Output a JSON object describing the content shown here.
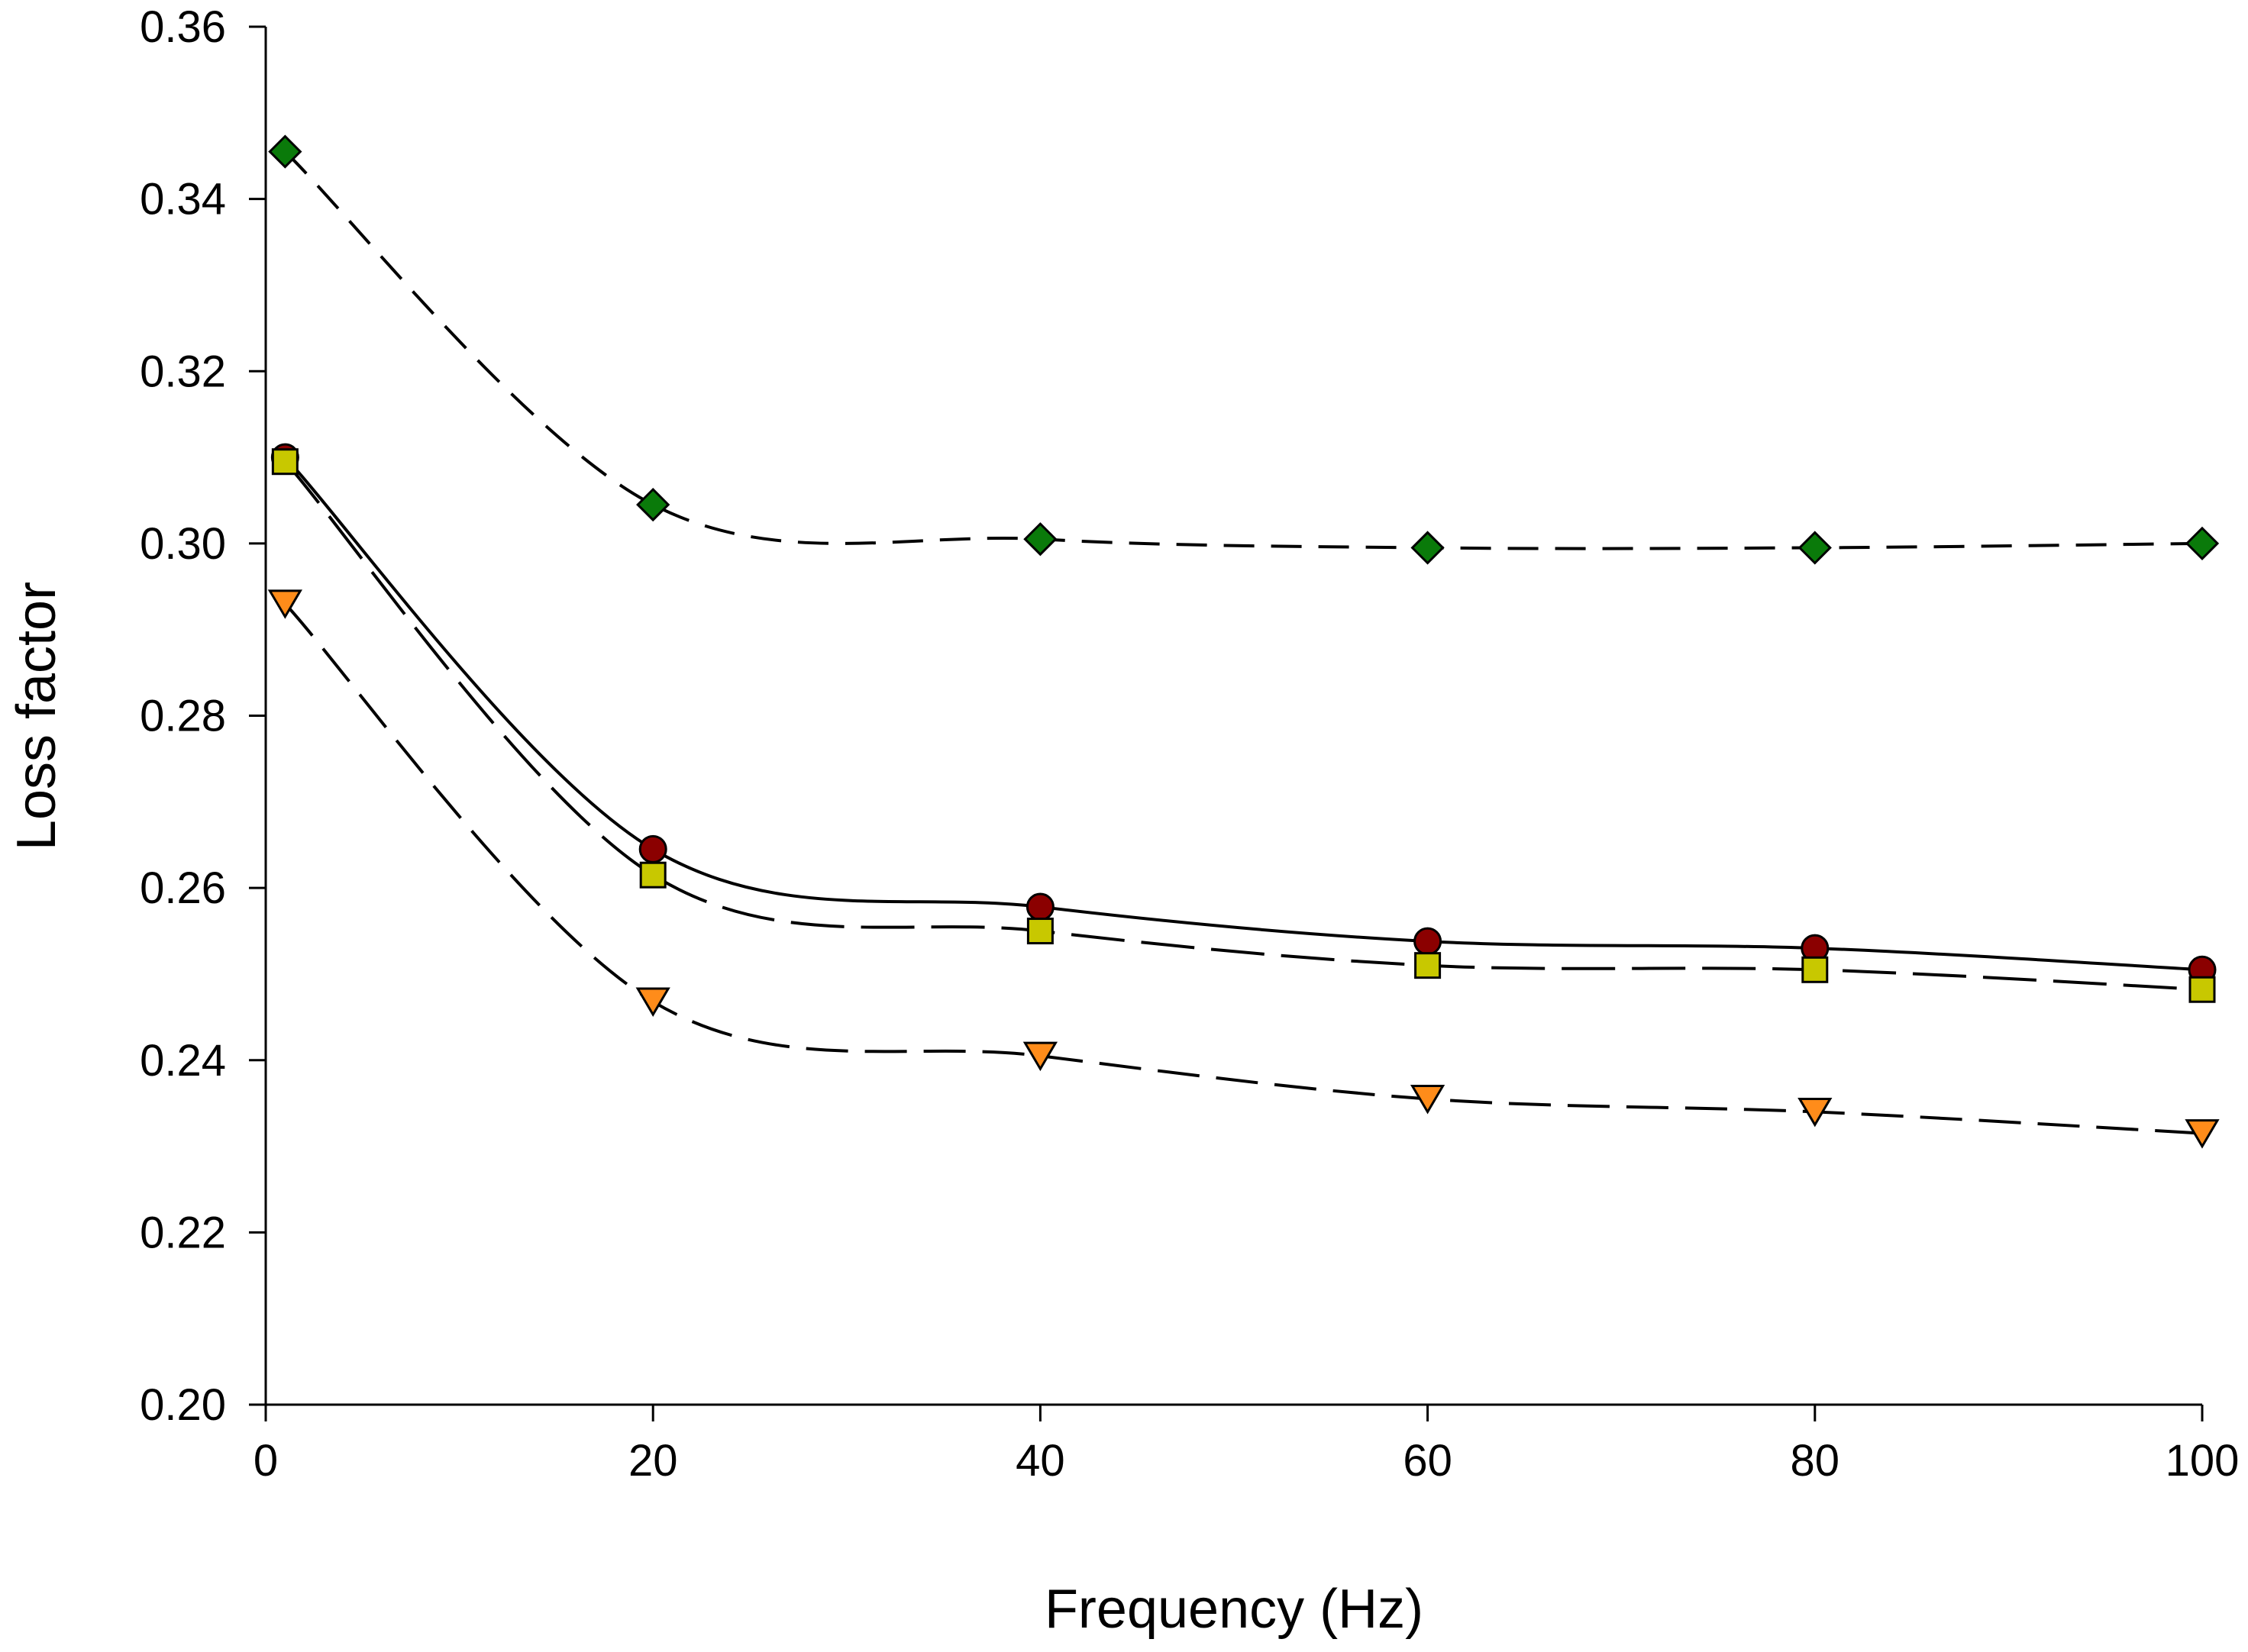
{
  "chart_data": {
    "type": "line",
    "title": "",
    "xlabel": "Frequency (Hz)",
    "ylabel": "Loss factor",
    "xlim": [
      0,
      100
    ],
    "ylim": [
      0.2,
      0.36
    ],
    "x_ticks": [
      0,
      20,
      40,
      60,
      80,
      100
    ],
    "x_tick_labels": [
      "0",
      "20",
      "40",
      "60",
      "80",
      "100"
    ],
    "y_ticks": [
      0.2,
      0.22,
      0.24,
      0.26,
      0.28,
      0.3,
      0.32,
      0.34,
      0.36
    ],
    "y_tick_labels": [
      "0.20",
      "0.22",
      "0.24",
      "0.26",
      "0.28",
      "0.30",
      "0.32",
      "0.34",
      "0.36"
    ],
    "grid": false,
    "legend": "none",
    "series": [
      {
        "name": "diamond series",
        "marker": "diamond",
        "color": "#0a7a0a",
        "line_style": "dashed",
        "x": [
          1,
          20,
          40,
          60,
          80,
          100
        ],
        "values": [
          0.3455,
          0.3045,
          0.3005,
          0.2995,
          0.2995,
          0.3
        ]
      },
      {
        "name": "circle series",
        "marker": "circle",
        "color": "#8b0000",
        "line_style": "solid",
        "x": [
          1,
          20,
          40,
          60,
          80,
          100
        ],
        "values": [
          0.31,
          0.2645,
          0.2578,
          0.2538,
          0.253,
          0.2505
        ]
      },
      {
        "name": "square series",
        "marker": "square",
        "color": "#c8c800",
        "line_style": "dashed",
        "x": [
          1,
          20,
          40,
          60,
          80,
          100
        ],
        "values": [
          0.3095,
          0.2615,
          0.255,
          0.251,
          0.2505,
          0.2482
        ]
      },
      {
        "name": "triangle series",
        "marker": "triangle-down",
        "color": "#ff8c1a",
        "line_style": "dashed",
        "x": [
          1,
          20,
          40,
          60,
          80,
          100
        ],
        "values": [
          0.293,
          0.2468,
          0.2405,
          0.2355,
          0.234,
          0.2315
        ]
      }
    ]
  }
}
